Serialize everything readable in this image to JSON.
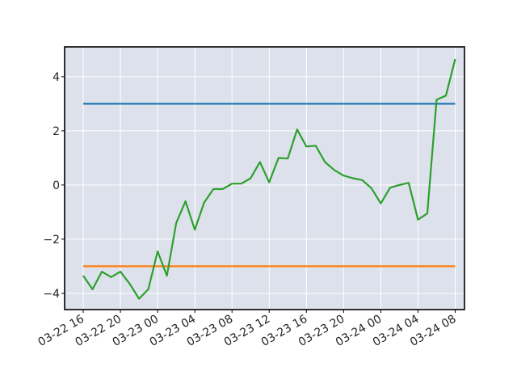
{
  "chart_data": {
    "type": "line",
    "title": "",
    "xlabel": "",
    "ylabel": "",
    "x_start": "2024-03-22 16:00",
    "x_step_hours": 1,
    "xlim": [
      "2024-03-22 14:00",
      "2024-03-24 09:00"
    ],
    "ylim": [
      -4.6,
      5.1
    ],
    "grid": true,
    "legend": false,
    "x_ticks": [
      {
        "at": "2024-03-22 16:00",
        "label": "03-22 16"
      },
      {
        "at": "2024-03-22 20:00",
        "label": "03-22 20"
      },
      {
        "at": "2024-03-23 00:00",
        "label": "03-23 00"
      },
      {
        "at": "2024-03-23 04:00",
        "label": "03-23 04"
      },
      {
        "at": "2024-03-23 08:00",
        "label": "03-23 08"
      },
      {
        "at": "2024-03-23 12:00",
        "label": "03-23 12"
      },
      {
        "at": "2024-03-23 16:00",
        "label": "03-23 16"
      },
      {
        "at": "2024-03-23 20:00",
        "label": "03-23 20"
      },
      {
        "at": "2024-03-24 00:00",
        "label": "03-24 00"
      },
      {
        "at": "2024-03-24 04:00",
        "label": "03-24 04"
      },
      {
        "at": "2024-03-24 08:00",
        "label": "03-24 08"
      }
    ],
    "y_ticks": [
      {
        "at": 4,
        "label": "4"
      },
      {
        "at": 2,
        "label": "2"
      },
      {
        "at": 0,
        "label": "0"
      },
      {
        "at": -2,
        "label": "−2"
      },
      {
        "at": -4,
        "label": "−4"
      }
    ],
    "series": [
      {
        "color": "#1f77b4",
        "x": [
          "2024-03-22 16:00",
          "2024-03-24 08:00"
        ],
        "values": [
          3.0,
          3.0
        ]
      },
      {
        "color": "#ff7f0e",
        "x": [
          "2024-03-22 16:00",
          "2024-03-24 08:00"
        ],
        "values": [
          -3.0,
          -3.0
        ]
      },
      {
        "color": "#2ca02c",
        "values": [
          -3.35,
          -3.85,
          -3.2,
          -3.4,
          -3.2,
          -3.65,
          -4.2,
          -3.85,
          -2.45,
          -3.35,
          -1.4,
          -0.6,
          -1.65,
          -0.65,
          -0.15,
          -0.15,
          0.05,
          0.05,
          0.25,
          0.85,
          0.1,
          1.0,
          0.98,
          2.05,
          1.42,
          1.45,
          0.85,
          0.55,
          0.35,
          0.25,
          0.18,
          -0.12,
          -0.68,
          -0.1,
          0.0,
          0.08,
          -1.28,
          -1.05,
          3.15,
          3.3,
          4.65
        ]
      }
    ]
  }
}
